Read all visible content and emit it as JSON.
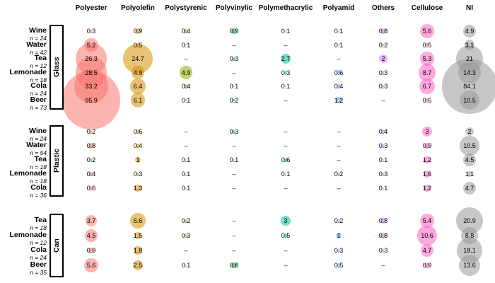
{
  "chart_data": {
    "type": "scatter",
    "subtype": "balloon-plot / bubble-matrix (bubble area encodes cell value, color encodes polymer column)",
    "na_symbol": "–",
    "legend_position": "none",
    "grid": false,
    "columns": [
      {
        "label": "Polyester",
        "color": "#F8766D"
      },
      {
        "label": "Polyolefin",
        "color": "#D39200"
      },
      {
        "label": "Polystyrenic",
        "color": "#93AA00"
      },
      {
        "label": "Polyvinylic",
        "color": "#00BA38"
      },
      {
        "label": "Polymethacrylic",
        "color": "#00C19F"
      },
      {
        "label": "Polyamid",
        "color": "#619CFF"
      },
      {
        "label": "Others",
        "color": "#DB72FB"
      },
      {
        "label": "Cellulose",
        "color": "#FF61C3"
      },
      {
        "label": "NI",
        "color": "#999999"
      }
    ],
    "groups": [
      {
        "label": "Glass",
        "rows": [
          {
            "beverage": "Wine",
            "n_label": "n = 24",
            "values": [
              "0.3",
              "0.9",
              "0.4",
              "0.9",
              "0.1",
              "0.1",
              "0.8",
              "5.6",
              "4.9"
            ]
          },
          {
            "beverage": "Water",
            "n_label": "n = 42",
            "values": [
              "5.2",
              "0.5",
              "0.1",
              "–",
              "–",
              "0.1",
              "0.2",
              "0.5",
              "3.1"
            ]
          },
          {
            "beverage": "Tea",
            "n_label": "n = 12",
            "values": [
              "26.3",
              "24.7",
              "–",
              "0.3",
              "2.7",
              "–",
              "2",
              "5.3",
              "21"
            ]
          },
          {
            "beverage": "Lemonade",
            "n_label": "n = 18",
            "values": [
              "28.5",
              "4.9",
              "4.9",
              "–",
              "0.3",
              "0.6",
              "0.3",
              "8.7",
              "14.3"
            ]
          },
          {
            "beverage": "Cola",
            "n_label": "n = 24",
            "values": [
              "33.2",
              "6.4",
              "0.4",
              "0.1",
              "0.1",
              "0.4",
              "0.3",
              "6.7",
              "84.1"
            ]
          },
          {
            "beverage": "Beer",
            "n_label": "n = 73",
            "values": [
              "95.9",
              "6.1",
              "0.1",
              "0.2",
              "–",
              "1.2",
              "–",
              "0.5",
              "10.5"
            ]
          }
        ]
      },
      {
        "label": "Plastic",
        "rows": [
          {
            "beverage": "Wine",
            "n_label": "n = 24",
            "values": [
              "0.2",
              "0.6",
              "–",
              "0.3",
              "–",
              "–",
              "0.4",
              "3",
              "2"
            ]
          },
          {
            "beverage": "Water",
            "n_label": "n = 54",
            "values": [
              "0.8",
              "0.4",
              "–",
              "–",
              "–",
              "–",
              "0.3",
              "0.9",
              "10.5"
            ]
          },
          {
            "beverage": "Tea",
            "n_label": "n = 18",
            "values": [
              "0.2",
              "1",
              "0.1",
              "0.1",
              "0.6",
              "–",
              "0.1",
              "1.2",
              "4.5"
            ]
          },
          {
            "beverage": "Lemonade",
            "n_label": "n = 18",
            "values": [
              "0.4",
              "0.3",
              "0.1",
              "–",
              "0.1",
              "0.2",
              "0.3",
              "1.6",
              "1.1"
            ]
          },
          {
            "beverage": "Cola",
            "n_label": "n = 36",
            "values": [
              "0.6",
              "1.3",
              "0.1",
              "–",
              "–",
              "–",
              "0.1",
              "1.2",
              "4.7"
            ]
          }
        ]
      },
      {
        "label": "Can",
        "rows": [
          {
            "beverage": "Tea",
            "n_label": "n = 18",
            "values": [
              "3.7",
              "6.6",
              "0.2",
              "–",
              "3",
              "0.2",
              "0.8",
              "5.4",
              "20.9"
            ]
          },
          {
            "beverage": "Lemonade",
            "n_label": "n = 12",
            "values": [
              "4.5",
              "1.5",
              "0.3",
              "–",
              "0.5",
              "1",
              "0.8",
              "10.6",
              "8.8"
            ]
          },
          {
            "beverage": "Cola",
            "n_label": "n = 24",
            "values": [
              "0.9",
              "1.8",
              "–",
              "–",
              "–",
              "0.3",
              "0.3",
              "4.7",
              "18.1"
            ]
          },
          {
            "beverage": "Beer",
            "n_label": "n = 35",
            "values": [
              "5.6",
              "2.5",
              "0.1",
              "0.8",
              "–",
              "0.5",
              "–",
              "0.9",
              "13.6"
            ]
          }
        ]
      }
    ]
  }
}
